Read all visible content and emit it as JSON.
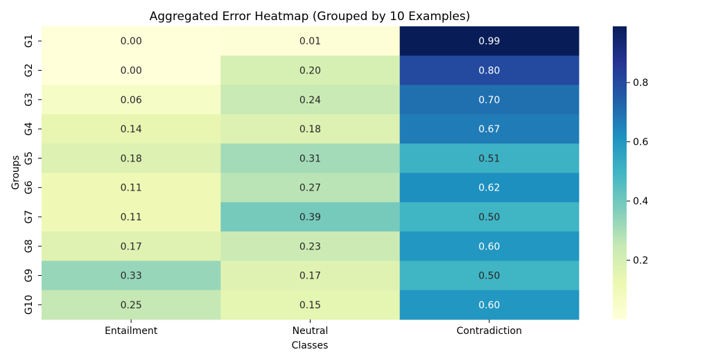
{
  "chart_data": {
    "type": "heatmap",
    "title": "Aggregated Error Heatmap (Grouped by 10 Examples)",
    "xlabel": "Classes",
    "ylabel": "Groups",
    "columns": [
      "Entailment",
      "Neutral",
      "Contradiction"
    ],
    "rows": [
      "G1",
      "G2",
      "G3",
      "G4",
      "G5",
      "G6",
      "G7",
      "G8",
      "G9",
      "G10"
    ],
    "values": [
      [
        0.0,
        0.01,
        0.99
      ],
      [
        0.0,
        0.2,
        0.8
      ],
      [
        0.06,
        0.24,
        0.7
      ],
      [
        0.14,
        0.18,
        0.67
      ],
      [
        0.18,
        0.31,
        0.51
      ],
      [
        0.11,
        0.27,
        0.62
      ],
      [
        0.11,
        0.39,
        0.5
      ],
      [
        0.17,
        0.23,
        0.6
      ],
      [
        0.33,
        0.17,
        0.5
      ],
      [
        0.25,
        0.15,
        0.6
      ]
    ],
    "value_format": "0.00",
    "colormap": "YlGnBu",
    "vmin": 0.0,
    "vmax": 0.99,
    "colorbar_ticks": [
      "0.2",
      "0.4",
      "0.6",
      "0.8"
    ],
    "colors": {
      "low": "#ffffd9",
      "high": "#081d58",
      "dark_text": "#262626",
      "light_text": "#ffffff"
    }
  }
}
